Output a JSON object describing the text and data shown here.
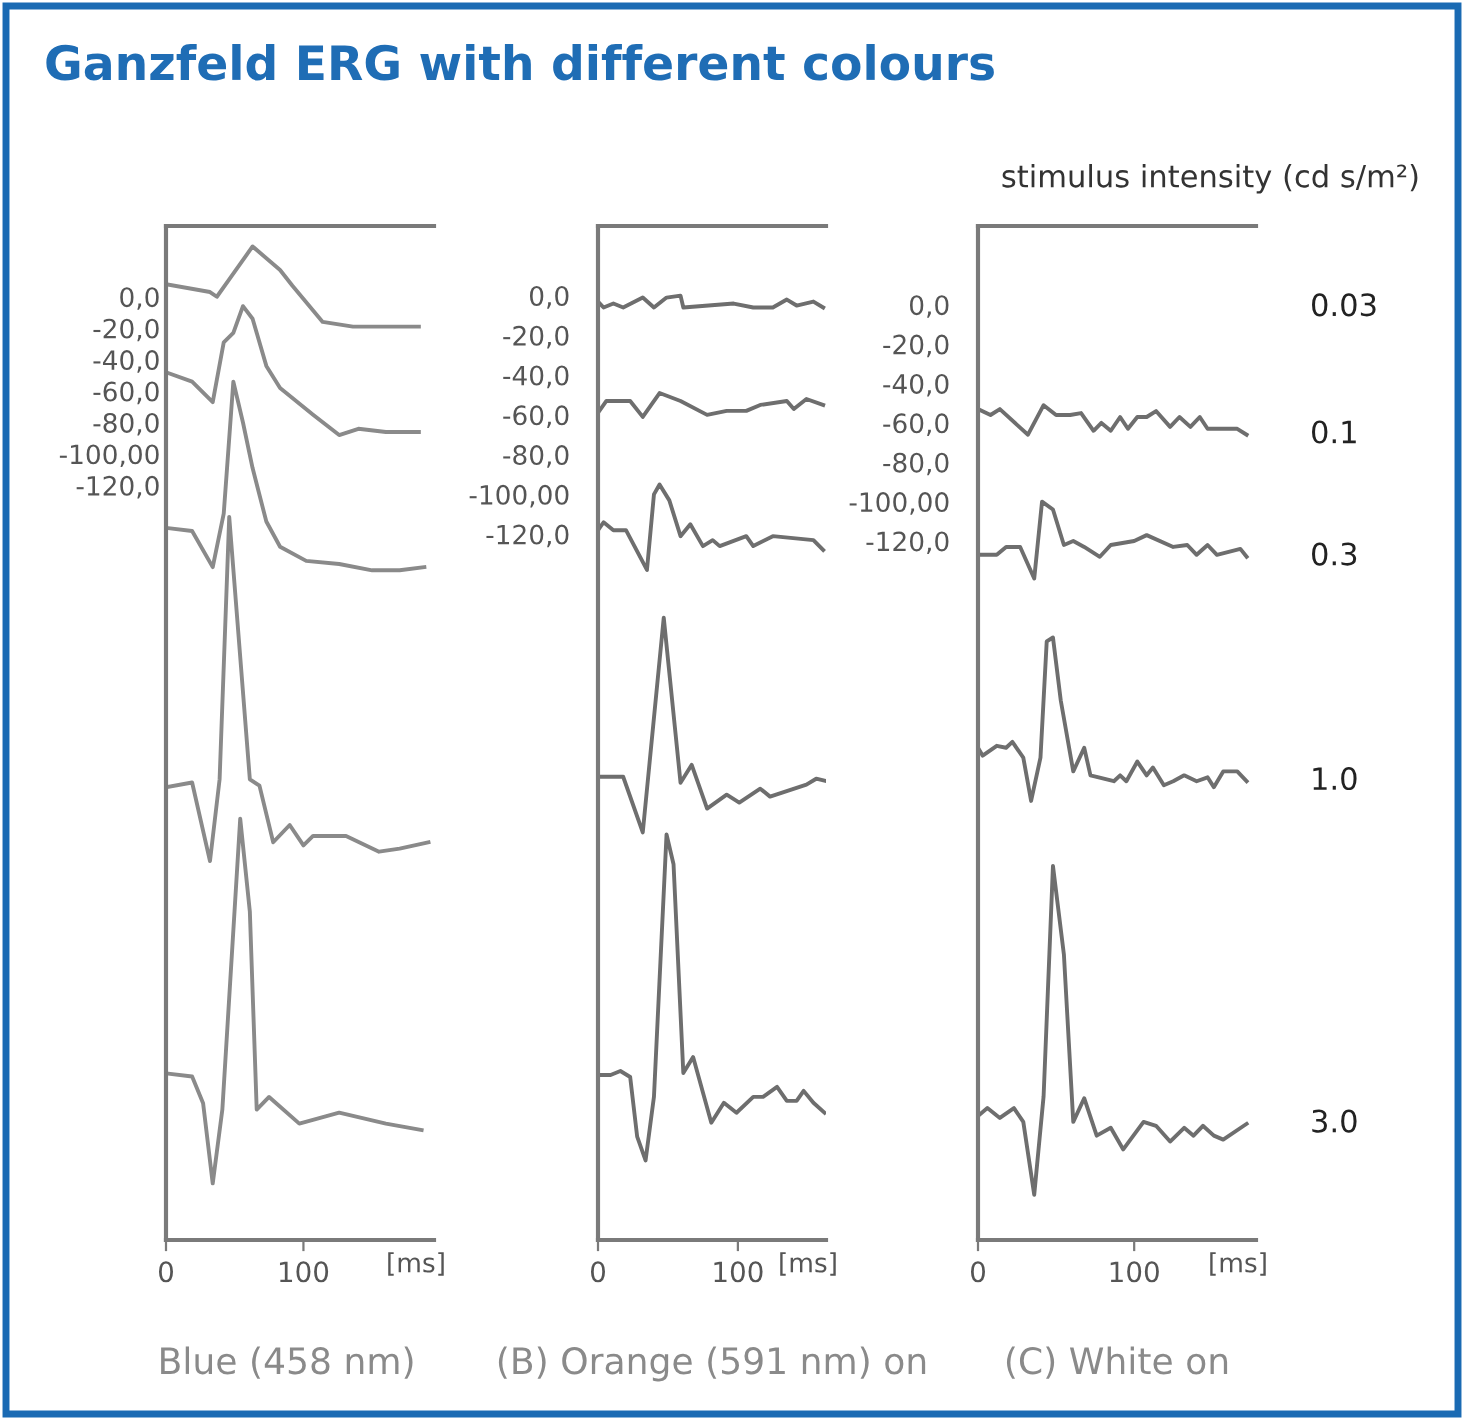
{
  "chart_data": [
    {
      "type": "line",
      "title": "Ganzfeld ERG with different colours",
      "subtitle": "Blue (458 nm)",
      "xlabel": "[ms]",
      "xlim": [
        0,
        195
      ],
      "xticks": [
        0,
        100
      ],
      "ylim": [
        -600,
        45
      ],
      "yticks": [
        {
          "value": 0,
          "label": "0,0"
        },
        {
          "value": -20,
          "label": "-20,0"
        },
        {
          "value": -40,
          "label": "-40,0"
        },
        {
          "value": -60,
          "label": "-60,0"
        },
        {
          "value": -80,
          "label": "-80,0"
        },
        {
          "value": -100,
          "label": "-100,00"
        },
        {
          "value": -120,
          "label": "-120,0"
        }
      ],
      "grid": false,
      "marker": "none",
      "line_style": "solid",
      "series": [
        {
          "color": "#8a8a8a",
          "x": [
            0,
            32,
            37,
            46,
            63,
            83,
            92,
            114,
            136,
            184
          ],
          "values": [
            8,
            3,
            0,
            11,
            32,
            17,
            7,
            -16,
            -19,
            -19
          ]
        },
        {
          "color": "#8a8a8a",
          "x": [
            0,
            19,
            34,
            42,
            49,
            56,
            63,
            73,
            83,
            107,
            126,
            140,
            160,
            184
          ],
          "values": [
            -48,
            -54,
            -67,
            -29,
            -23,
            -6,
            -14,
            -44,
            -58,
            -75,
            -88,
            -84,
            -86,
            -86
          ]
        },
        {
          "color": "#8a8a8a",
          "x": [
            0,
            19,
            34,
            42,
            49,
            56,
            63,
            73,
            83,
            102,
            126,
            150,
            170,
            188
          ],
          "values": [
            -147,
            -149,
            -172,
            -138,
            -54,
            -80,
            -109,
            -143,
            -159,
            -168,
            -170,
            -174,
            -174,
            -172
          ]
        },
        {
          "color": "#8a8a8a",
          "x": [
            0,
            19,
            32,
            39,
            46,
            61,
            68,
            78,
            90,
            100,
            107,
            131,
            155,
            170,
            191
          ],
          "values": [
            -312,
            -309,
            -359,
            -307,
            -140,
            -307,
            -311,
            -347,
            -336,
            -349,
            -343,
            -343,
            -353,
            -351,
            -347
          ]
        },
        {
          "color": "#8a8a8a",
          "x": [
            0,
            19,
            27,
            34,
            41,
            54,
            61,
            66,
            75,
            97,
            126,
            160,
            186
          ],
          "values": [
            -494,
            -496,
            -513,
            -564,
            -517,
            -332,
            -391,
            -517,
            -509,
            -526,
            -519,
            -526,
            -530
          ]
        }
      ]
    },
    {
      "type": "line",
      "subtitle": "(B) Orange (591 nm) on",
      "xlabel": "[ms]",
      "xlim": [
        0,
        163
      ],
      "xticks": [
        0,
        100
      ],
      "ylim": [
        -475,
        35
      ],
      "yticks": [
        {
          "value": 0,
          "label": "0,0"
        },
        {
          "value": -20,
          "label": "-20,0"
        },
        {
          "value": -40,
          "label": "-40,0"
        },
        {
          "value": -60,
          "label": "-60,0"
        },
        {
          "value": -80,
          "label": "-80,0"
        },
        {
          "value": -100,
          "label": "-100,00"
        },
        {
          "value": -120,
          "label": "-120,0"
        }
      ],
      "grid": false,
      "marker": "none",
      "line_style": "solid",
      "series": [
        {
          "color": "#6e6e6e",
          "x": [
            0,
            4,
            11,
            18,
            32,
            40,
            49,
            59,
            61,
            97,
            111,
            125,
            135,
            142,
            154,
            161
          ],
          "values": [
            -3,
            -6,
            -4,
            -6,
            -1,
            -6,
            -1,
            0,
            -6,
            -4,
            -6,
            -6,
            -2,
            -5,
            -3,
            -6
          ]
        },
        {
          "color": "#6e6e6e",
          "x": [
            0,
            6,
            23,
            32,
            44,
            59,
            78,
            92,
            106,
            116,
            135,
            140,
            149,
            161
          ],
          "values": [
            -59,
            -53,
            -53,
            -61,
            -49,
            -53,
            -60,
            -58,
            -58,
            -55,
            -53,
            -57,
            -52,
            -55
          ]
        },
        {
          "color": "#6e6e6e",
          "x": [
            0,
            4,
            11,
            20,
            35,
            40,
            44,
            51,
            59,
            66,
            75,
            82,
            87,
            106,
            111,
            125,
            154,
            161
          ],
          "values": [
            -118,
            -114,
            -118,
            -118,
            -138,
            -100,
            -95,
            -103,
            -121,
            -115,
            -126,
            -123,
            -126,
            -121,
            -126,
            -121,
            -123,
            -128
          ]
        },
        {
          "color": "#6e6e6e",
          "x": [
            0,
            18,
            32,
            47,
            59,
            67,
            78,
            92,
            101,
            116,
            123,
            149,
            156,
            162
          ],
          "values": [
            -242,
            -242,
            -270,
            -162,
            -245,
            -236,
            -258,
            -251,
            -255,
            -248,
            -252,
            -246,
            -243,
            -244
          ]
        },
        {
          "color": "#6e6e6e",
          "x": [
            0,
            9,
            16,
            23,
            28,
            34,
            40,
            49,
            54,
            61,
            68,
            81,
            90,
            99,
            111,
            118,
            128,
            135,
            142,
            147,
            154,
            162
          ],
          "values": [
            -392,
            -392,
            -390,
            -393,
            -423,
            -435,
            -403,
            -271,
            -286,
            -391,
            -383,
            -416,
            -406,
            -411,
            -403,
            -403,
            -398,
            -405,
            -405,
            -400,
            -406,
            -411
          ]
        }
      ]
    },
    {
      "type": "line",
      "subtitle": "(C) White on",
      "xlabel": "[ms]",
      "legend_title": "stimulus intensity (cd s/m²)",
      "xlim": [
        0,
        178
      ],
      "xticks": [
        0,
        100
      ],
      "ylim": [
        -475,
        40
      ],
      "yticks": [
        {
          "value": 0,
          "label": "0,0"
        },
        {
          "value": -20,
          "label": "-20,0"
        },
        {
          "value": -40,
          "label": "-40,0"
        },
        {
          "value": -60,
          "label": "-60,0"
        },
        {
          "value": -80,
          "label": "-80,0"
        },
        {
          "value": -100,
          "label": "-100,00"
        },
        {
          "value": -120,
          "label": "-120,0"
        }
      ],
      "grid": false,
      "legend": "right",
      "marker": "none",
      "line_style": "solid",
      "series": [
        {
          "name": "0.03"
        },
        {
          "name": "0.1",
          "color": "#6e6e6e",
          "x": [
            0,
            8,
            14,
            25,
            32,
            42,
            50,
            59,
            66,
            74,
            79,
            85,
            91,
            96,
            102,
            108,
            114,
            123,
            129,
            136,
            142,
            147,
            159,
            166,
            172
          ],
          "values": [
            -53,
            -56,
            -53,
            -61,
            -66,
            -51,
            -56,
            -56,
            -55,
            -64,
            -60,
            -64,
            -57,
            -63,
            -57,
            -57,
            -54,
            -62,
            -57,
            -62,
            -57,
            -63,
            -63,
            -63,
            -66
          ]
        },
        {
          "name": "0.3",
          "color": "#6e6e6e",
          "x": [
            0,
            12,
            18,
            27,
            36,
            41,
            48,
            55,
            61,
            68,
            78,
            85,
            100,
            108,
            125,
            134,
            140,
            147,
            153,
            168,
            172
          ],
          "values": [
            -127,
            -127,
            -123,
            -123,
            -139,
            -100,
            -104,
            -122,
            -120,
            -123,
            -128,
            -122,
            -120,
            -117,
            -123,
            -122,
            -127,
            -122,
            -127,
            -124,
            -128
          ]
        },
        {
          "name": "1.0",
          "color": "#6e6e6e",
          "x": [
            0,
            3,
            12,
            18,
            22,
            29,
            34,
            40,
            44,
            48,
            53,
            61,
            68,
            72,
            87,
            91,
            95,
            102,
            108,
            112,
            119,
            125,
            132,
            140,
            147,
            151,
            157,
            166,
            172
          ],
          "values": [
            -225,
            -229,
            -224,
            -225,
            -222,
            -230,
            -252,
            -230,
            -171,
            -169,
            -201,
            -237,
            -225,
            -239,
            -242,
            -239,
            -242,
            -232,
            -239,
            -235,
            -244,
            -242,
            -239,
            -242,
            -240,
            -245,
            -237,
            -237,
            -242
          ]
        },
        {
          "name": "3.0",
          "color": "#6e6e6e",
          "x": [
            0,
            6,
            14,
            23,
            29,
            36,
            42,
            48,
            55,
            61,
            68,
            76,
            85,
            93,
            106,
            114,
            123,
            132,
            138,
            144,
            151,
            157,
            172
          ],
          "values": [
            -412,
            -408,
            -413,
            -408,
            -415,
            -452,
            -402,
            -285,
            -330,
            -415,
            -403,
            -422,
            -418,
            -429,
            -415,
            -417,
            -425,
            -418,
            -422,
            -417,
            -422,
            -424,
            -416
          ]
        }
      ]
    }
  ]
}
